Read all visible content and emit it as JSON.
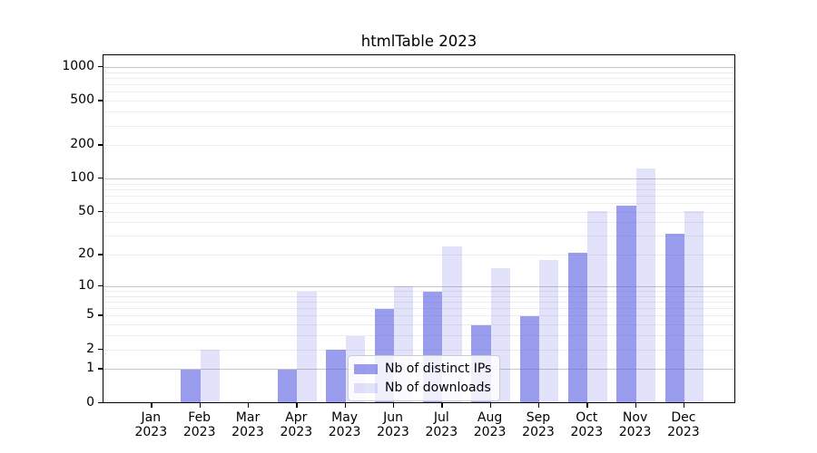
{
  "title": "htmlTable 2023",
  "colors": {
    "bar_distinct_ips": "rgba(92,96,226,0.62)",
    "bar_downloads": "rgba(92,96,226,0.18)",
    "gridline_major": "#c6c6c6",
    "gridline_minor": "#ececec",
    "axis": "#000000",
    "legend_border": "#cccccc"
  },
  "legend": {
    "items": [
      {
        "id": "distinct_ips",
        "label": "Nb of distinct IPs"
      },
      {
        "id": "downloads",
        "label": "Nb of downloads"
      }
    ],
    "position": "lower center"
  },
  "chart_data": {
    "type": "bar",
    "title": "htmlTable 2023",
    "categories": [
      "Jan",
      "Feb",
      "Mar",
      "Apr",
      "May",
      "Jun",
      "Jul",
      "Aug",
      "Sep",
      "Oct",
      "Nov",
      "Dec"
    ],
    "category_year": "2023",
    "series": [
      {
        "name": "Nb of distinct IPs",
        "values": [
          0,
          1,
          0,
          1,
          2,
          6,
          9,
          4,
          5,
          21,
          57,
          32
        ]
      },
      {
        "name": "Nb of downloads",
        "values": [
          0,
          2,
          0,
          9,
          3,
          10,
          24,
          15,
          18,
          51,
          124,
          51
        ]
      }
    ],
    "y_ticks": [
      0,
      1,
      2,
      5,
      10,
      20,
      50,
      100,
      200,
      500,
      1000
    ],
    "y_scale": "log10(1+v)",
    "ylim": [
      0,
      1300
    ],
    "xlabel": "",
    "ylabel": "",
    "grid": "horizontal major (1,10,100,1000) + minor (2-9,20-90,200-900)",
    "legend_position": "lower center"
  }
}
